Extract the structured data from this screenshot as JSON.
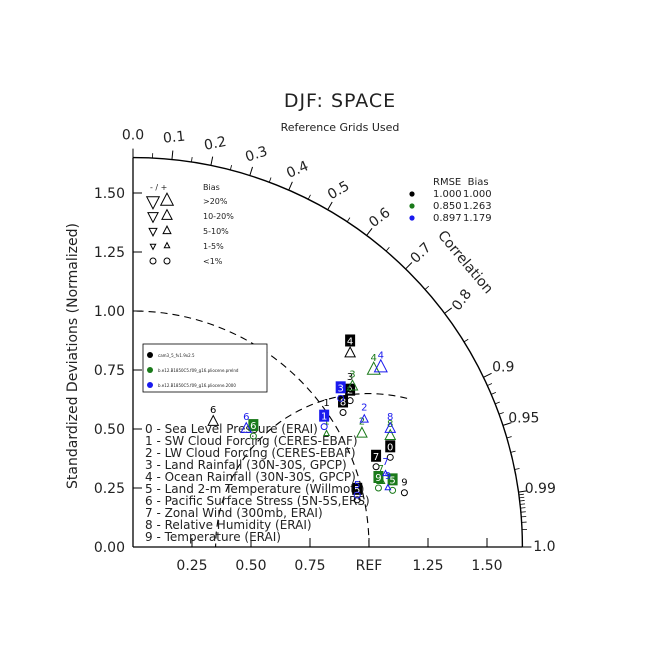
{
  "chart_data": {
    "type": "scatter",
    "subtype": "taylor-diagram",
    "title": "DJF: SPACE",
    "subtitle": "Reference Grids Used",
    "ylabel": "Standardized Deviations (Normalized)",
    "correlation_label": "Correlation",
    "ref_label": "REF",
    "std_range": [
      0,
      1.65
    ],
    "x_ticks": [
      "0.25",
      "0.50",
      "0.75",
      "REF",
      "1.25",
      "1.50"
    ],
    "x_tick_values": [
      0.25,
      0.5,
      0.75,
      1.0,
      1.25,
      1.5
    ],
    "y_ticks": [
      "0.00",
      "0.25",
      "0.50",
      "0.75",
      "1.00",
      "1.25",
      "1.50"
    ],
    "y_tick_values": [
      0,
      0.25,
      0.5,
      0.75,
      1.0,
      1.25,
      1.5
    ],
    "corr_ticks": [
      "0.0",
      "0.1",
      "0.2",
      "0.3",
      "0.4",
      "0.5",
      "0.6",
      "0.7",
      "0.8",
      "0.9",
      "0.95",
      "0.99",
      "1.0"
    ],
    "corr_tick_values": [
      0.0,
      0.1,
      0.2,
      0.3,
      0.4,
      0.5,
      0.6,
      0.7,
      0.8,
      0.9,
      0.95,
      0.99,
      1.0
    ],
    "corr_minor_ticks": [
      0.05,
      0.15,
      0.25,
      0.35,
      0.45,
      0.55,
      0.65,
      0.75,
      0.85,
      0.91,
      0.92,
      0.93,
      0.94,
      0.96,
      0.97,
      0.98,
      0.991,
      0.992,
      0.993,
      0.994,
      0.995,
      0.996,
      0.997,
      0.998,
      0.999
    ],
    "bias_legend": {
      "header_sign": "- / +",
      "header_label": "Bias",
      "rows": [
        {
          "label": ">20%",
          "level": 4
        },
        {
          "label": "10-20%",
          "level": 3
        },
        {
          "label": "5-10%",
          "level": 2
        },
        {
          "label": "1-5%",
          "level": 1
        },
        {
          "label": "<1%",
          "level": 0
        }
      ]
    },
    "stats_legend": {
      "header": "RMSE  Bias",
      "rows": [
        {
          "color": "#000000",
          "rmse": "1.000",
          "bias": "1.000"
        },
        {
          "color": "#1a7a1a",
          "rmse": "0.850",
          "bias": "1.263"
        },
        {
          "color": "#1a1aee",
          "rmse": "0.897",
          "bias": "1.179"
        }
      ]
    },
    "cases": [
      {
        "name": "cam3_5_fv1.9x2.5",
        "color": "#000000"
      },
      {
        "name": "b.e12.B1850C5.f09_g16.pliocene.prelnd",
        "color": "#1a7a1a"
      },
      {
        "name": "b.e12.B1850C5.f09_g16.pliocene.2000",
        "color": "#1a1aee"
      }
    ],
    "variables": [
      "0 - Sea Level Pressure (ERAI)",
      "1 - SW Cloud Forcing (CERES-EBAF)",
      "2 - LW Cloud Forcing (CERES-EBAF)",
      "3 - Land Rainfall (30N-30S, GPCP)",
      "4 - Ocean Rainfall (30N-30S, GPCP)",
      "5 - Land 2-m Temperature (Willmott)",
      "6 - Pacific Surface Stress (5N-5S,ERS)",
      "7 - Zonal Wind (300mb, ERAI)",
      "8 - Relative Humidity (ERAI)",
      "9 - Temperature (ERAI)"
    ],
    "points": [
      {
        "case": 0,
        "var": "0",
        "x": 1.09,
        "y": 0.38,
        "box": true,
        "level": 0
      },
      {
        "case": 0,
        "var": "1",
        "x": 0.82,
        "y": 0.56,
        "box": false,
        "level": 1
      },
      {
        "case": 0,
        "var": "2",
        "x": 0.92,
        "y": 0.62,
        "box": true,
        "level": 0
      },
      {
        "case": 0,
        "var": "3",
        "x": 0.92,
        "y": 0.67,
        "box": false,
        "level": 2
      },
      {
        "case": 0,
        "var": "4",
        "x": 0.92,
        "y": 0.82,
        "box": true,
        "level": 3
      },
      {
        "case": 0,
        "var": "5",
        "x": 0.95,
        "y": 0.2,
        "box": true,
        "level": 0
      },
      {
        "case": 0,
        "var": "6",
        "x": 0.34,
        "y": 0.53,
        "box": false,
        "level": 3
      },
      {
        "case": 0,
        "var": "7",
        "x": 1.03,
        "y": 0.34,
        "box": true,
        "level": 0
      },
      {
        "case": 0,
        "var": "8",
        "x": 0.89,
        "y": 0.57,
        "box": true,
        "level": 0
      },
      {
        "case": 0,
        "var": "9",
        "x": 1.15,
        "y": 0.23,
        "box": false,
        "level": 0
      },
      {
        "case": 1,
        "var": "1",
        "x": 0.82,
        "y": 0.48,
        "box": false,
        "level": 1
      },
      {
        "case": 1,
        "var": "2",
        "x": 0.97,
        "y": 0.48,
        "box": false,
        "level": 3
      },
      {
        "case": 1,
        "var": "3",
        "x": 0.93,
        "y": 0.68,
        "box": false,
        "level": 3
      },
      {
        "case": 1,
        "var": "4",
        "x": 1.02,
        "y": 0.75,
        "box": false,
        "level": 4
      },
      {
        "case": 1,
        "var": "5",
        "x": 1.1,
        "y": 0.24,
        "box": true,
        "level": 0
      },
      {
        "case": 1,
        "var": "6",
        "x": 0.51,
        "y": 0.47,
        "box": true,
        "level": 0
      },
      {
        "case": 1,
        "var": "7",
        "x": 1.05,
        "y": 0.28,
        "box": false,
        "level": 2
      },
      {
        "case": 1,
        "var": "8",
        "x": 1.09,
        "y": 0.47,
        "box": false,
        "level": 3
      },
      {
        "case": 1,
        "var": "9",
        "x": 1.04,
        "y": 0.25,
        "box": true,
        "level": 0
      },
      {
        "case": 2,
        "var": "1",
        "x": 0.81,
        "y": 0.51,
        "box": true,
        "level": 0
      },
      {
        "case": 2,
        "var": "2",
        "x": 0.98,
        "y": 0.54,
        "box": false,
        "level": 2
      },
      {
        "case": 2,
        "var": "3",
        "x": 0.88,
        "y": 0.63,
        "box": true,
        "level": 0
      },
      {
        "case": 2,
        "var": "4",
        "x": 1.05,
        "y": 0.76,
        "box": false,
        "level": 4
      },
      {
        "case": 2,
        "var": "5",
        "x": 0.95,
        "y": 0.22,
        "box": false,
        "level": 0
      },
      {
        "case": 2,
        "var": "6",
        "x": 0.48,
        "y": 0.5,
        "box": false,
        "level": 3
      },
      {
        "case": 2,
        "var": "7",
        "x": 1.07,
        "y": 0.31,
        "box": false,
        "level": 1
      },
      {
        "case": 2,
        "var": "8",
        "x": 1.09,
        "y": 0.5,
        "box": false,
        "level": 3
      },
      {
        "case": 2,
        "var": "9",
        "x": 1.08,
        "y": 0.25,
        "box": false,
        "level": 1
      }
    ]
  }
}
